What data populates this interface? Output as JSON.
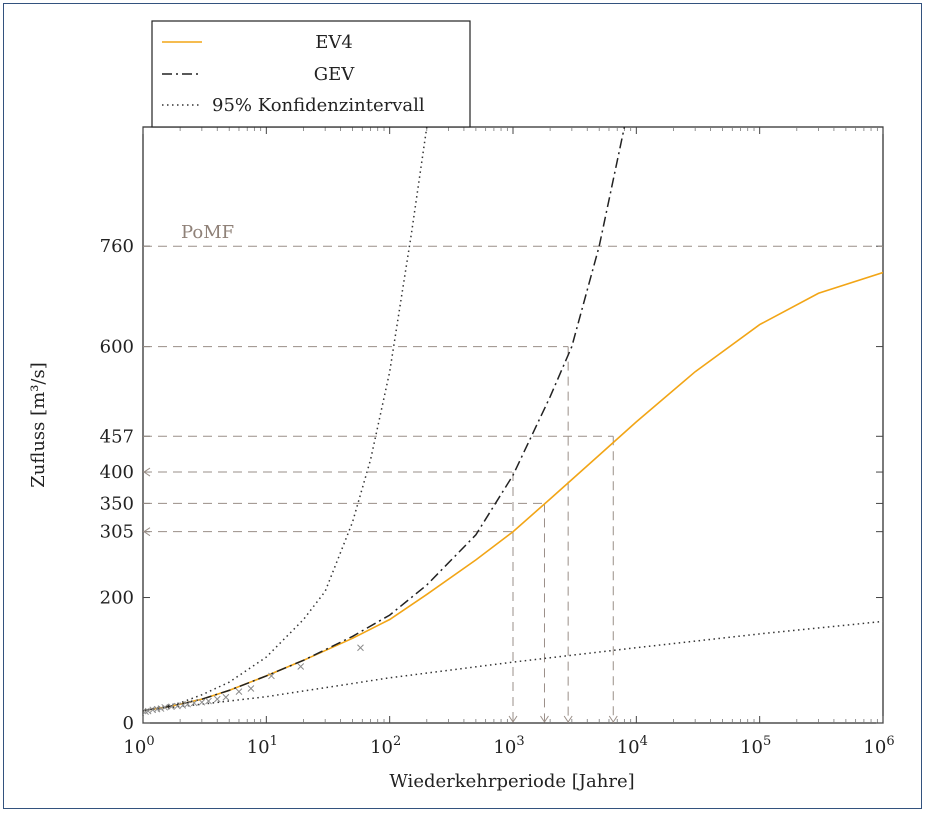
{
  "chart_data": {
    "type": "line",
    "xlabel": "Wiederkehrperiode [Jahre]",
    "ylabel": "Zufluss [m³/s]",
    "x_scale": "log",
    "xlim": [
      1,
      1000000
    ],
    "ylim": [
      0,
      950
    ],
    "x_ticks": [
      {
        "value": 1,
        "mantissa": "10",
        "exp": "0"
      },
      {
        "value": 10,
        "mantissa": "10",
        "exp": "1"
      },
      {
        "value": 100,
        "mantissa": "10",
        "exp": "2"
      },
      {
        "value": 1000,
        "mantissa": "10",
        "exp": "3"
      },
      {
        "value": 10000,
        "mantissa": "10",
        "exp": "4"
      },
      {
        "value": 100000,
        "mantissa": "10",
        "exp": "5"
      },
      {
        "value": 1000000,
        "mantissa": "10",
        "exp": "6"
      }
    ],
    "y_ticks": [
      0,
      200,
      305,
      350,
      400,
      457,
      600,
      760
    ],
    "grid": false,
    "legend_position": "top-left",
    "colors": {
      "ev4": "#f2a516",
      "gev": "#222222",
      "ci": "#333333",
      "guide": "#9a8f88",
      "scatter": "#8c8c8c"
    },
    "series": [
      {
        "name": "EV4",
        "style": "solid",
        "x": [
          1,
          1.5,
          2,
          3,
          5,
          10,
          20,
          50,
          100,
          200,
          500,
          1000,
          2000,
          5000,
          10000,
          30000,
          100000,
          300000,
          1000000
        ],
        "y": [
          20,
          25,
          30,
          38,
          52,
          75,
          100,
          135,
          165,
          205,
          260,
          305,
          357,
          427,
          480,
          560,
          635,
          685,
          718
        ]
      },
      {
        "name": "GEV",
        "style": "dash-dot",
        "x": [
          1,
          1.5,
          2,
          3,
          5,
          10,
          20,
          50,
          100,
          200,
          500,
          1000,
          2000,
          3000,
          5000,
          8000
        ],
        "y": [
          20,
          25,
          30,
          38,
          52,
          75,
          100,
          138,
          172,
          220,
          300,
          395,
          520,
          600,
          760,
          950
        ]
      },
      {
        "name": "95% Konfidenzintervall",
        "style": "dotted",
        "x": [
          1,
          1.5,
          2,
          3,
          5,
          10,
          20,
          30,
          50,
          70,
          100,
          150,
          200
        ],
        "y": [
          20,
          27,
          32,
          45,
          65,
          105,
          165,
          210,
          320,
          420,
          560,
          780,
          950
        ]
      },
      {
        "name": "",
        "style": "dotted",
        "x": [
          1,
          3,
          10,
          100,
          1000,
          10000,
          100000,
          1000000
        ],
        "y": [
          20,
          30,
          42,
          72,
          97,
          120,
          142,
          162
        ]
      }
    ],
    "observations": {
      "x": [
        1.05,
        1.1,
        1.2,
        1.3,
        1.4,
        1.5,
        1.7,
        1.9,
        2.1,
        2.3,
        2.6,
        3.0,
        3.4,
        4.0,
        4.7,
        6.0,
        7.5,
        11,
        19,
        58
      ],
      "y": [
        18,
        19,
        21,
        22,
        23,
        25,
        26,
        27,
        28,
        30,
        32,
        33,
        35,
        38,
        41,
        50,
        55,
        75,
        90,
        120
      ]
    },
    "annotation": "PoMF",
    "annotation_value": 760,
    "guides": [
      {
        "x": 1000,
        "y": 400
      },
      {
        "x": 1800,
        "y": 350
      },
      {
        "x": 2800,
        "y": 600
      },
      {
        "x": 6500,
        "y": 457
      }
    ],
    "guide_305": 305
  }
}
